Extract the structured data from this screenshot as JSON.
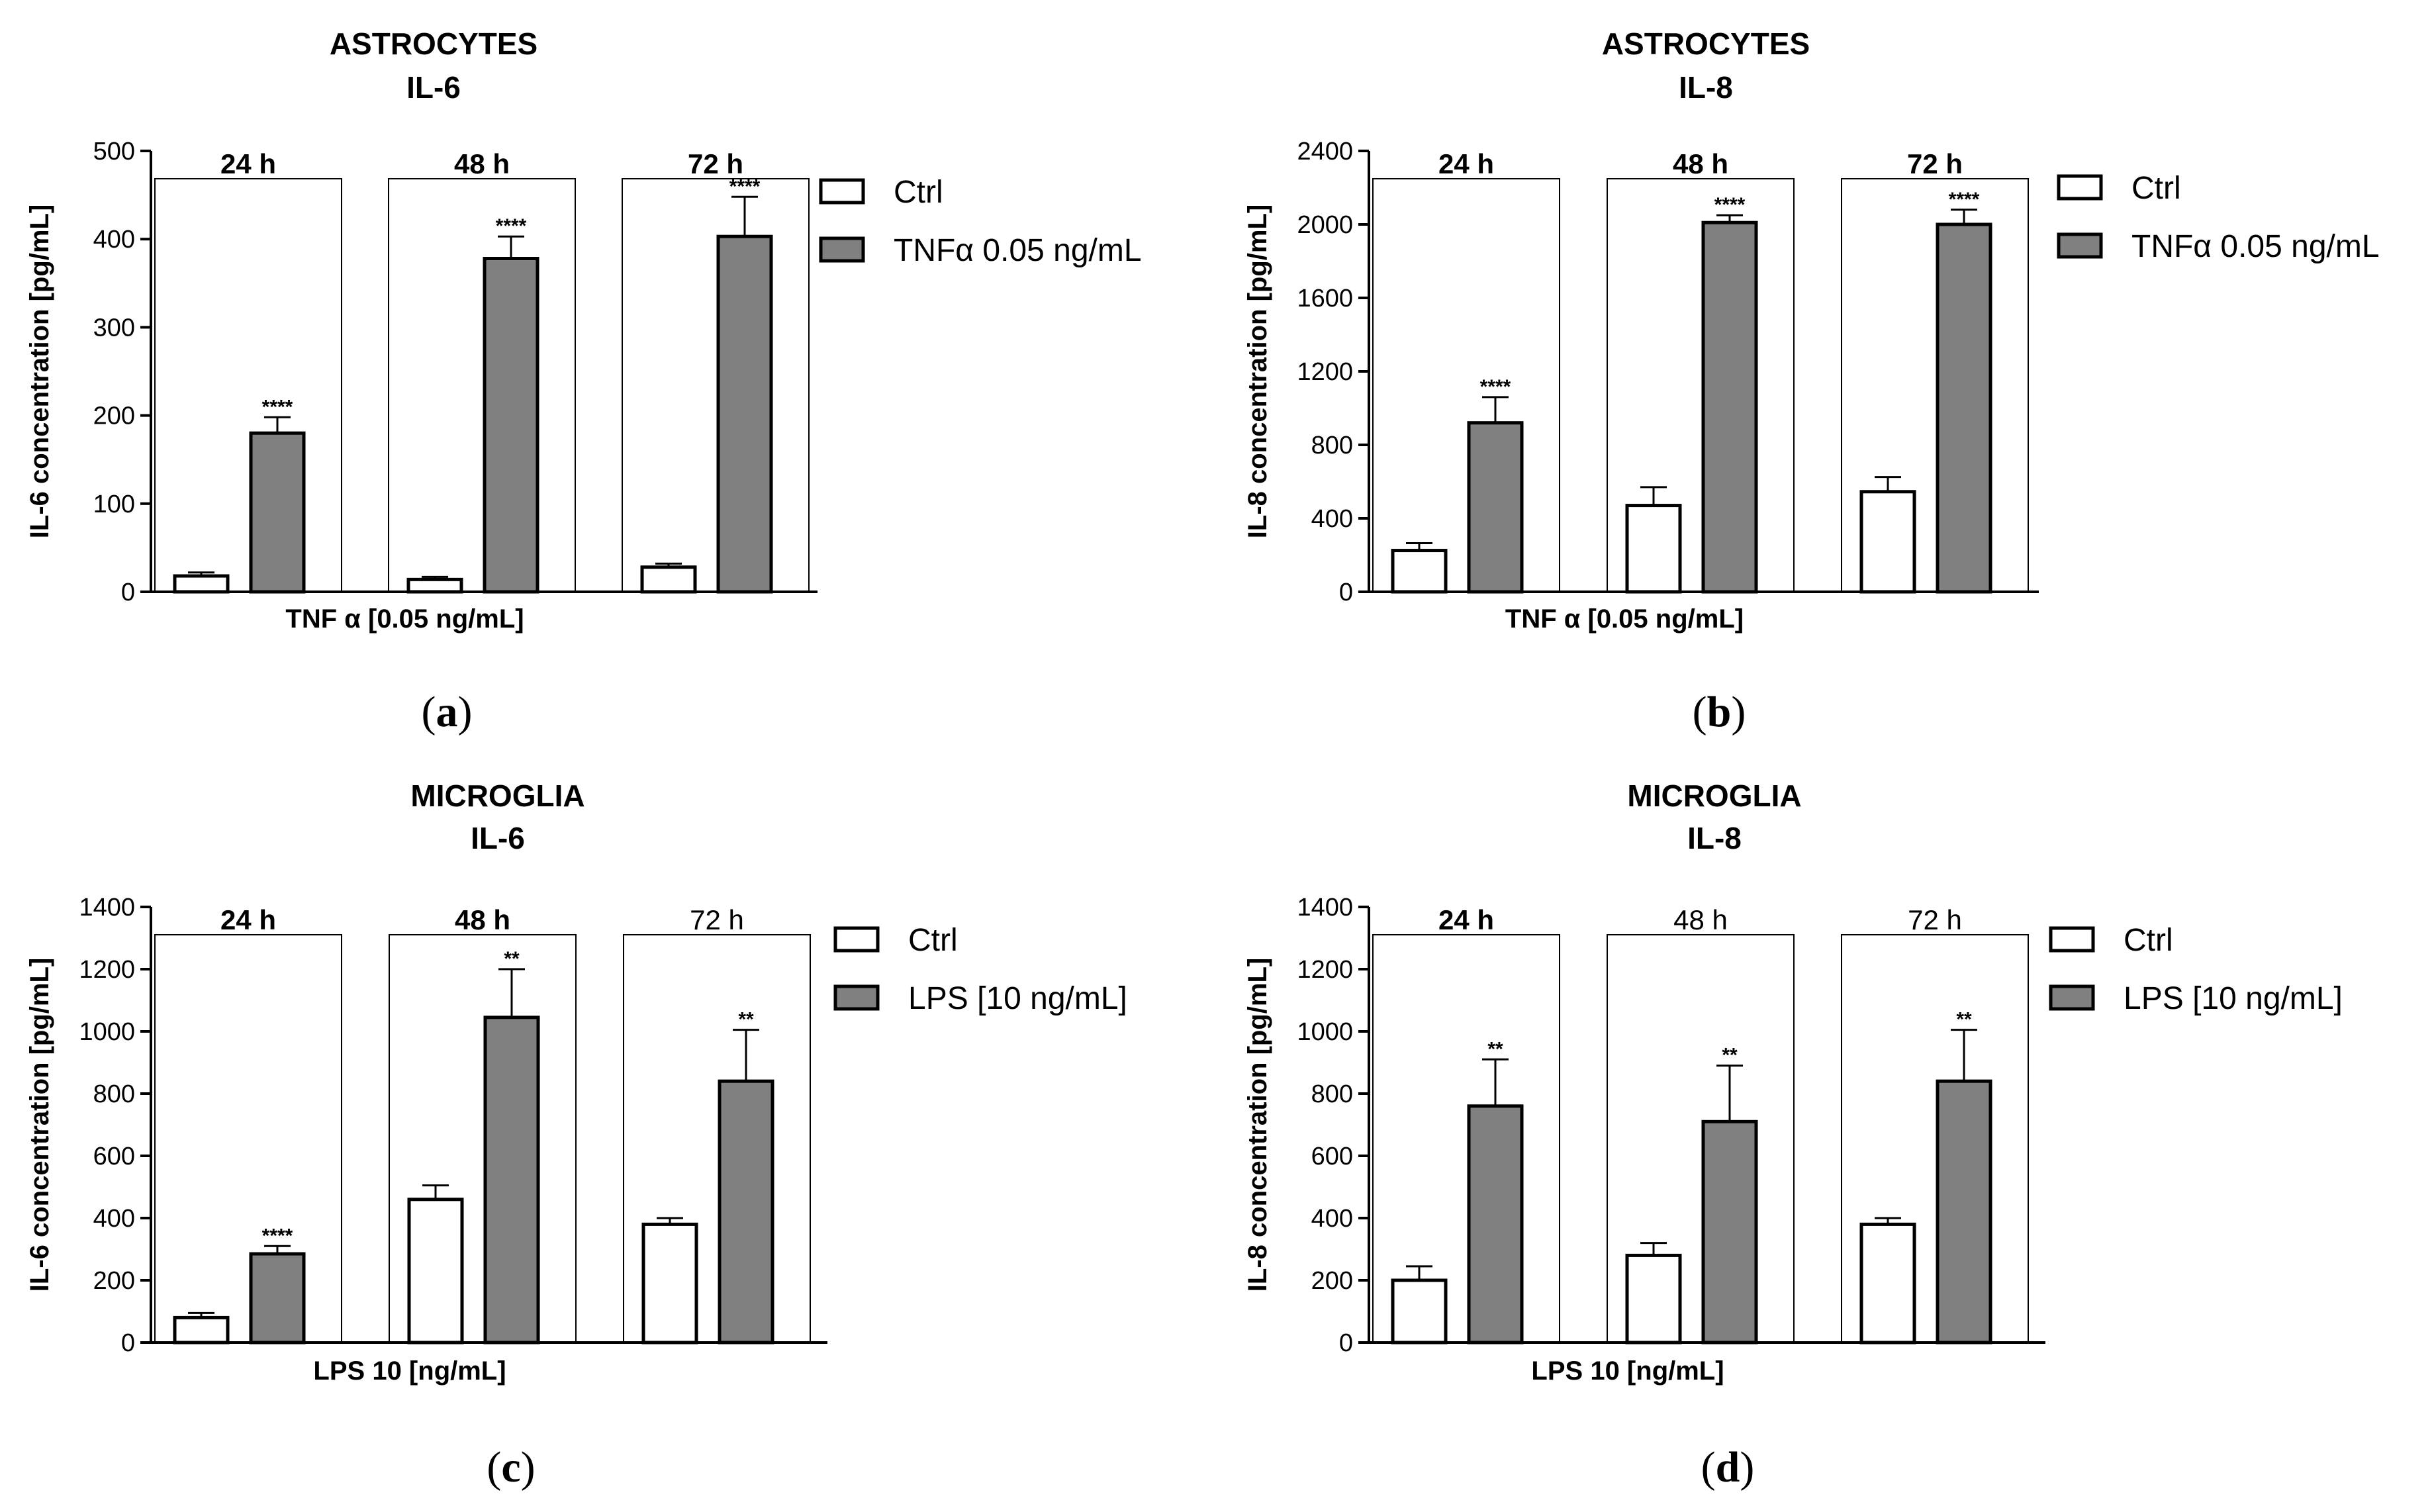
{
  "colors": {
    "ctrl_fill": "#ffffff",
    "treated_fill": "#808080",
    "stroke": "#000000"
  },
  "chart_data": [
    {
      "id": "a",
      "type": "bar",
      "caption": "a",
      "title_line1": "ASTROCYTES",
      "title_line2": "IL-6",
      "ylabel": "IL-6 concentration [pg/mL]",
      "xlabel": "TNF α [0.05 ng/mL]",
      "ylim": [
        0,
        500
      ],
      "yticks": [
        0,
        100,
        200,
        300,
        400,
        500
      ],
      "categories": [
        "24 h",
        "48 h",
        "72 h"
      ],
      "categories_bold": [
        true,
        true,
        true
      ],
      "series": [
        {
          "name": "Ctrl",
          "values": [
            18,
            14,
            28
          ],
          "errors": [
            4,
            3,
            4
          ]
        },
        {
          "name": "TNFα 0.05 ng/mL",
          "values": [
            180,
            378,
            403
          ],
          "errors": [
            18,
            25,
            45
          ]
        }
      ],
      "significance": [
        "",
        "",
        "",
        "****",
        "****",
        "****"
      ]
    },
    {
      "id": "b",
      "type": "bar",
      "caption": "b",
      "title_line1": "ASTROCYTES",
      "title_line2": "IL-8",
      "ylabel": "IL-8 concentration [pg/mL]",
      "xlabel": "TNF α [0.05 ng/mL]",
      "ylim": [
        0,
        2400
      ],
      "yticks": [
        0,
        400,
        800,
        1200,
        1600,
        2000,
        2400
      ],
      "categories": [
        "24 h",
        "48 h",
        "72 h"
      ],
      "categories_bold": [
        true,
        true,
        true
      ],
      "series": [
        {
          "name": "Ctrl",
          "values": [
            225,
            470,
            545
          ],
          "errors": [
            40,
            100,
            80
          ]
        },
        {
          "name": "TNFα 0.05 ng/mL",
          "values": [
            920,
            2010,
            2000
          ],
          "errors": [
            140,
            40,
            80
          ]
        }
      ],
      "significance": [
        "",
        "",
        "",
        "****",
        "****",
        "****"
      ]
    },
    {
      "id": "c",
      "type": "bar",
      "caption": "c",
      "title_line1": "MICROGLIA",
      "title_line2": "IL-6",
      "ylabel": "IL-6 concentration [pg/mL]",
      "xlabel": "LPS 10 [ng/mL]",
      "ylim": [
        0,
        1400
      ],
      "yticks": [
        0,
        200,
        400,
        600,
        800,
        1000,
        1200,
        1400
      ],
      "categories": [
        "24 h",
        "48 h",
        "72 h"
      ],
      "categories_bold": [
        true,
        true,
        false
      ],
      "series": [
        {
          "name": "Ctrl",
          "values": [
            80,
            460,
            380
          ],
          "errors": [
            15,
            45,
            20
          ]
        },
        {
          "name": "LPS [10 ng/mL]",
          "values": [
            285,
            1045,
            840
          ],
          "errors": [
            25,
            155,
            165
          ]
        }
      ],
      "significance": [
        "",
        "",
        "",
        "****",
        "**",
        "**"
      ]
    },
    {
      "id": "d",
      "type": "bar",
      "caption": "d",
      "title_line1": "MICROGLIA",
      "title_line2": "IL-8",
      "ylabel": "IL-8 concentration [pg/mL]",
      "xlabel": "LPS 10 [ng/mL]",
      "ylim": [
        0,
        1400
      ],
      "yticks": [
        0,
        200,
        400,
        600,
        800,
        1000,
        1200,
        1400
      ],
      "categories": [
        "24 h",
        "48 h",
        "72 h"
      ],
      "categories_bold": [
        true,
        false,
        false
      ],
      "series": [
        {
          "name": "Ctrl",
          "values": [
            200,
            280,
            380
          ],
          "errors": [
            45,
            40,
            20
          ]
        },
        {
          "name": "LPS [10 ng/mL]",
          "values": [
            760,
            710,
            840
          ],
          "errors": [
            150,
            180,
            165
          ]
        }
      ],
      "significance": [
        "",
        "",
        "",
        "**",
        "**",
        "**"
      ]
    }
  ]
}
